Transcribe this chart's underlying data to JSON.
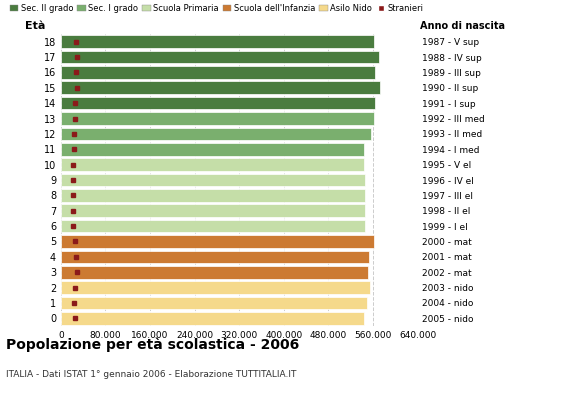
{
  "ages": [
    18,
    17,
    16,
    15,
    14,
    13,
    12,
    11,
    10,
    9,
    8,
    7,
    6,
    5,
    4,
    3,
    2,
    1,
    0
  ],
  "years": [
    "1987 - V sup",
    "1988 - IV sup",
    "1989 - III sup",
    "1990 - II sup",
    "1991 - I sup",
    "1992 - III med",
    "1993 - II med",
    "1994 - I med",
    "1995 - V el",
    "1996 - IV el",
    "1997 - III el",
    "1998 - II el",
    "1999 - I el",
    "2000 - mat",
    "2001 - mat",
    "2002 - mat",
    "2003 - nido",
    "2004 - nido",
    "2005 - nido"
  ],
  "bar_values": [
    562000,
    571000,
    563000,
    572000,
    563000,
    562000,
    556000,
    543000,
    543000,
    546000,
    546000,
    546000,
    546000,
    562000,
    552000,
    551000,
    554000,
    550000,
    543000
  ],
  "stranieri_values": [
    27000,
    28000,
    27000,
    28000,
    26000,
    25000,
    24000,
    23000,
    21000,
    22000,
    22000,
    22000,
    21000,
    26000,
    27000,
    29000,
    26000,
    24000,
    25000
  ],
  "bar_colors": [
    "#4a7c3f",
    "#4a7c3f",
    "#4a7c3f",
    "#4a7c3f",
    "#4a7c3f",
    "#7aaf6e",
    "#7aaf6e",
    "#7aaf6e",
    "#c5dea8",
    "#c5dea8",
    "#c5dea8",
    "#c5dea8",
    "#c5dea8",
    "#cc7a32",
    "#cc7a32",
    "#cc7a32",
    "#f5d98b",
    "#f5d98b",
    "#f5d98b"
  ],
  "stranieri_color": "#8b1a1a",
  "legend_labels": [
    "Sec. II grado",
    "Sec. I grado",
    "Scuola Primaria",
    "Scuola dell'Infanzia",
    "Asilo Nido",
    "Stranieri"
  ],
  "legend_colors": [
    "#4a7c3f",
    "#7aaf6e",
    "#c5dea8",
    "#cc7a32",
    "#f5d98b",
    "#8b1a1a"
  ],
  "title": "Popolazione per età scolastica - 2006",
  "subtitle": "ITALIA - Dati ISTAT 1° gennaio 2006 - Elaborazione TUTTITALIA.IT",
  "xlabel_eta": "Età",
  "xlabel_anno": "Anno di nascita",
  "xlim": [
    0,
    640000
  ],
  "xticks": [
    0,
    80000,
    160000,
    240000,
    320000,
    400000,
    480000,
    560000,
    640000
  ],
  "xtick_labels": [
    "0",
    "80.000",
    "160.000",
    "240.000",
    "320.000",
    "400.000",
    "480.000",
    "560.000",
    "640.000"
  ],
  "background_color": "#ffffff",
  "grid_color": "#cccccc"
}
